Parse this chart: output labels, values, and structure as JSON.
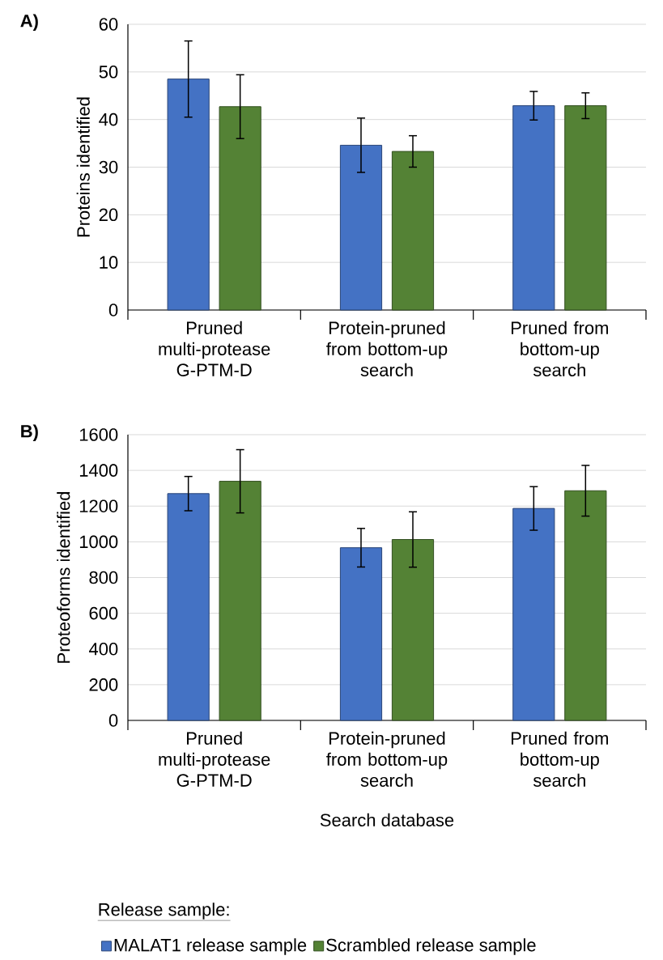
{
  "chart_data": [
    {
      "type": "bar",
      "title": "A)",
      "ylabel": "Proteins identified",
      "categories": [
        "Pruned multi-protease G-PTM-D",
        "Protein-pruned from bottom-up search",
        "Pruned from bottom-up search"
      ],
      "series": [
        {
          "color": "#4472c4",
          "values": [
            48.5,
            34.6,
            42.9
          ],
          "errors": [
            8.0,
            5.7,
            3.0
          ]
        },
        {
          "color": "#548235",
          "values": [
            42.7,
            33.3,
            42.9
          ],
          "errors": [
            6.7,
            3.3,
            2.7
          ]
        }
      ],
      "ylim": [
        0,
        60
      ],
      "yticks": [
        0,
        10,
        20,
        30,
        40,
        50,
        60
      ],
      "grid": "y"
    },
    {
      "type": "bar",
      "title": "B)",
      "ylabel": "Proteoforms identified",
      "xlabel": "Search database",
      "categories": [
        "Pruned multi-protease G-PTM-D",
        "Protein-pruned from bottom-up search",
        "Pruned from bottom-up search"
      ],
      "series": [
        {
          "name": "MALAT1 release sample",
          "color": "#4472c4",
          "values": [
            1270,
            967,
            1187
          ],
          "errors": [
            96,
            108,
            122
          ]
        },
        {
          "name": "Scrambled release sample",
          "color": "#548235",
          "values": [
            1339,
            1013,
            1286
          ],
          "errors": [
            177,
            155,
            142
          ]
        }
      ],
      "ylim": [
        0,
        1600
      ],
      "yticks": [
        0,
        200,
        400,
        600,
        800,
        1000,
        1200,
        1400,
        1600
      ],
      "grid": "y",
      "legend": "bottom",
      "legend_title": "Release sample:"
    }
  ]
}
